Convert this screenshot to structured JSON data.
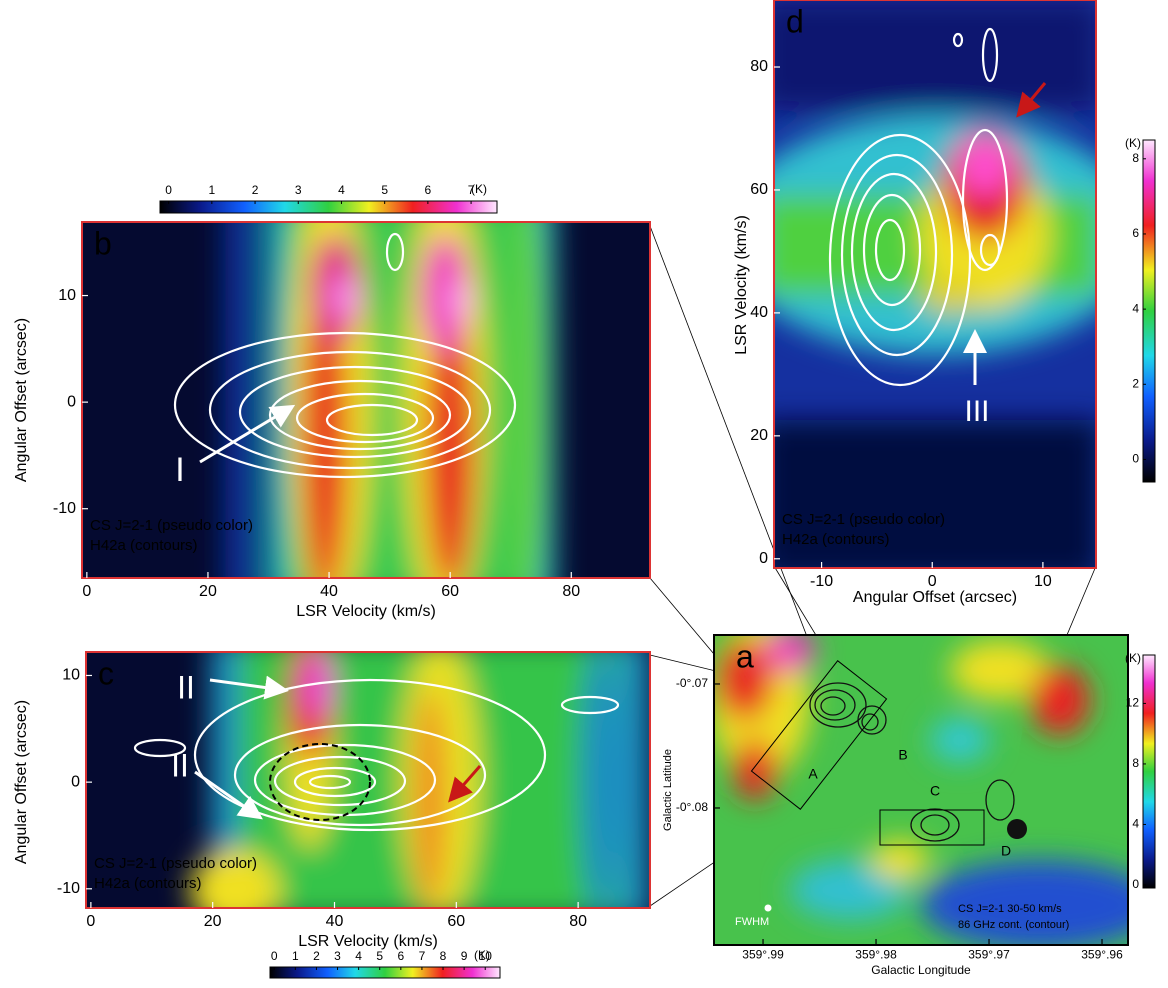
{
  "chart_data": [
    {
      "type": "pv-map",
      "label": "b",
      "xlabel": "LSR Velocity (km/s)",
      "ylabel": "Angular Offset (arcsec)",
      "xlim": [
        -0.8,
        93
      ],
      "ylim": [
        -16.5,
        16.9
      ],
      "xticks": [
        0,
        20,
        40,
        60,
        80
      ],
      "yticks": [
        -10,
        0,
        10
      ],
      "notes": [
        "CS J=2-1 (pseudo color)",
        "H42a (contours)"
      ],
      "annotations": [
        "I"
      ],
      "colorbar": {
        "lim": [
          -0.2,
          7.6
        ],
        "ticks": [
          0,
          1,
          2,
          3,
          4,
          5,
          6,
          7
        ],
        "unit": "(K)"
      }
    },
    {
      "type": "pv-map",
      "label": "c",
      "xlabel": "LSR Velocity (km/s)",
      "ylabel": "Angular Offset (arcsec)",
      "xlim": [
        -0.8,
        91.8
      ],
      "ylim": [
        -11.8,
        12.2
      ],
      "xticks": [
        0,
        20,
        40,
        60,
        80
      ],
      "yticks": [
        -10,
        0,
        10
      ],
      "notes": [
        "CS J=2-1 (pseudo color)",
        "H42a (contours)"
      ],
      "annotations": [
        "II",
        "II"
      ],
      "colorbar": {
        "lim": [
          -0.2,
          10.7
        ],
        "ticks": [
          0,
          1,
          2,
          3,
          4,
          5,
          6,
          7,
          8,
          9,
          10
        ],
        "unit": "(K)"
      }
    },
    {
      "type": "pv-map",
      "label": "d",
      "xlabel": "Angular Offset (arcsec)",
      "ylabel": "LSR Velocity (km/s)",
      "xlim": [
        -14.3,
        14.8
      ],
      "ylim": [
        -1.5,
        90.9
      ],
      "xticks": [
        -10,
        0,
        10
      ],
      "yticks": [
        0,
        20,
        40,
        60,
        80
      ],
      "notes": [
        "CS J=2-1 (pseudo color)",
        "H42a (contours)"
      ],
      "annotations": [
        "III"
      ],
      "colorbar": {
        "lim": [
          -0.6,
          8.5
        ],
        "ticks": [
          0,
          2,
          4,
          6,
          8
        ],
        "unit": "(K)"
      }
    },
    {
      "type": "sky-map",
      "label": "a",
      "xlabel": "Galactic Longitude",
      "ylabel": "Galactic Latitude",
      "xlim": [
        359.99434,
        359.9577
      ],
      "ylim": [
        -0.09105,
        -0.06605
      ],
      "xticks": [
        {
          "value": 359.99,
          "label": "359°.99"
        },
        {
          "value": 359.98,
          "label": "359°.98"
        },
        {
          "value": 359.97,
          "label": "359°.97"
        },
        {
          "value": 359.96,
          "label": "359°.96"
        }
      ],
      "yticks": [
        {
          "value": -0.08,
          "label": "-0°.08"
        },
        {
          "value": -0.07,
          "label": "-0°.07"
        }
      ],
      "notes": [
        "CS J=2-1 30-50 km/s",
        "86 GHz cont. (contour)"
      ],
      "annotations": [
        "A",
        "B",
        "C",
        "D",
        "FWHM"
      ],
      "colorbar": {
        "lim": [
          -0.2,
          15.2
        ],
        "ticks": [
          0,
          4,
          8,
          12
        ],
        "unit": "(K)"
      }
    }
  ]
}
